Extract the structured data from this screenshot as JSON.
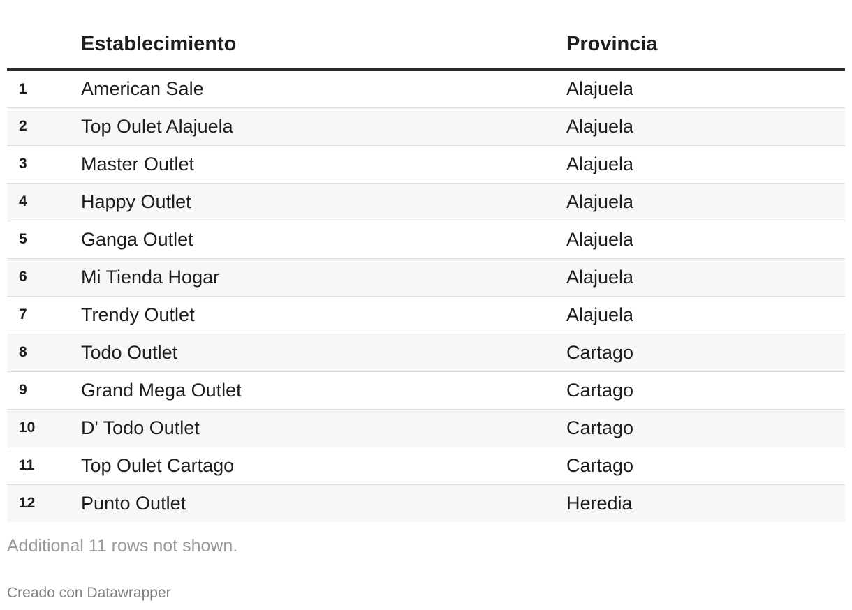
{
  "chart_data": {
    "type": "table",
    "columns": [
      "",
      "Establecimiento",
      "Provincia"
    ],
    "rows": [
      {
        "rank": "1",
        "name": "American Sale",
        "province": "Alajuela"
      },
      {
        "rank": "2",
        "name": "Top Oulet Alajuela",
        "province": "Alajuela"
      },
      {
        "rank": "3",
        "name": "Master Outlet",
        "province": "Alajuela"
      },
      {
        "rank": "4",
        "name": "Happy Outlet",
        "province": "Alajuela"
      },
      {
        "rank": "5",
        "name": "Ganga Outlet",
        "province": "Alajuela"
      },
      {
        "rank": "6",
        "name": "Mi Tienda Hogar",
        "province": "Alajuela"
      },
      {
        "rank": "7",
        "name": "Trendy Outlet",
        "province": "Alajuela"
      },
      {
        "rank": "8",
        "name": "Todo Outlet",
        "province": "Cartago"
      },
      {
        "rank": "9",
        "name": "Grand Mega Outlet",
        "province": "Cartago"
      },
      {
        "rank": "10",
        "name": "D' Todo Outlet",
        "province": "Cartago"
      },
      {
        "rank": "11",
        "name": "Top Oulet Cartago",
        "province": "Cartago"
      },
      {
        "rank": "12",
        "name": "Punto Outlet",
        "province": "Heredia"
      }
    ],
    "note": "Additional 11 rows not shown.",
    "credit": "Creado con Datawrapper"
  }
}
